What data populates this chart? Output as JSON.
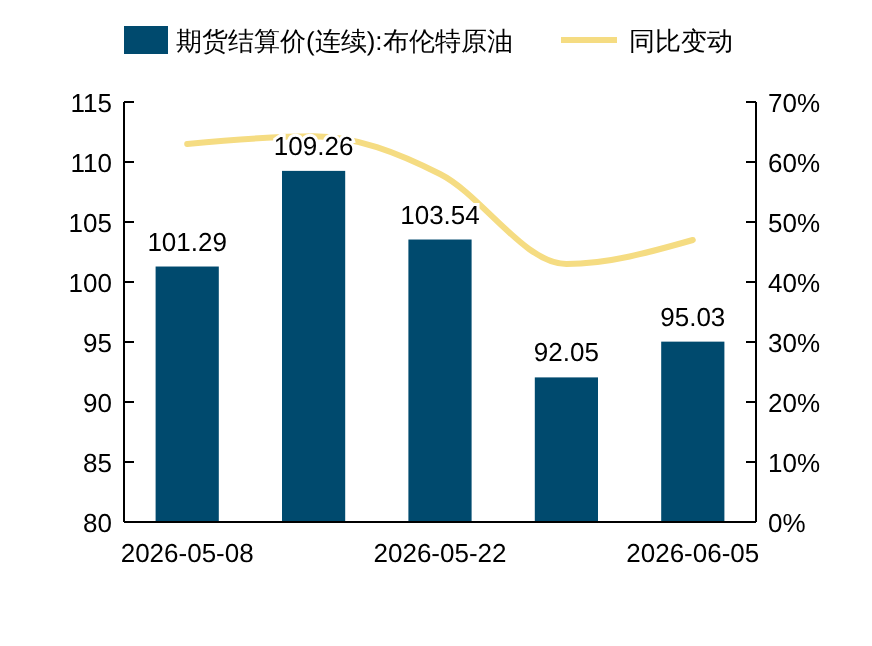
{
  "chart_data": {
    "type": "bar",
    "categories": [
      "2026-05-08",
      null,
      "2026-05-22",
      null,
      "2026-06-05"
    ],
    "series": [
      {
        "name": "期货结算价(连续):布伦特原油",
        "color": "#004a6e",
        "values": [
          101.29,
          109.26,
          103.54,
          92.05,
          95.03
        ],
        "value_labels": [
          "101.29",
          "109.26",
          "103.54",
          "92.05",
          "95.03"
        ]
      },
      {
        "name": "同比变动",
        "type": "line",
        "axis": "y2",
        "color": "#f5dc82",
        "values": [
          63,
          64.3,
          58,
          43,
          47
        ]
      }
    ],
    "ylim": [
      80,
      115
    ],
    "yticks": [
      80,
      85,
      90,
      95,
      100,
      105,
      110,
      115
    ],
    "y2lim": [
      0,
      70
    ],
    "y2ticks": [
      {
        "value": 0,
        "label": "0%"
      },
      {
        "value": 10,
        "label": "10%"
      },
      {
        "value": 20,
        "label": "20%"
      },
      {
        "value": 30,
        "label": "30%"
      },
      {
        "value": 40,
        "label": "40%"
      },
      {
        "value": 50,
        "label": "50%"
      },
      {
        "value": 60,
        "label": "60%"
      },
      {
        "value": 70,
        "label": "70%"
      }
    ],
    "legend": "top",
    "grid": false
  }
}
